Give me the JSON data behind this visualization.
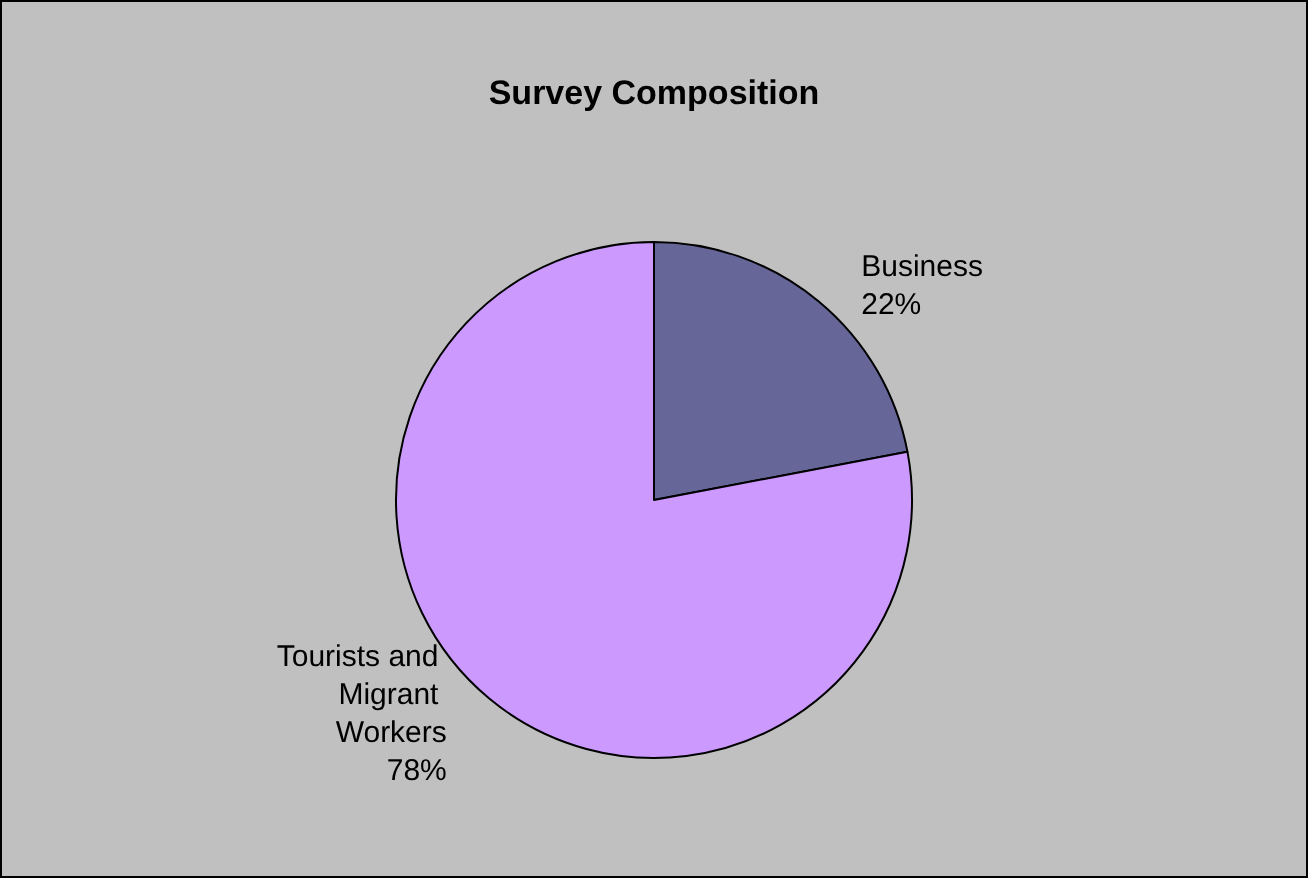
{
  "chart_data": {
    "type": "pie",
    "title": "Survey Composition",
    "categories": [
      "Business",
      "Tourists and Migrant Workers"
    ],
    "values": [
      22,
      78
    ],
    "colors": [
      "#666699",
      "#cc99ff"
    ],
    "value_labels": [
      "22%",
      "78%"
    ]
  }
}
